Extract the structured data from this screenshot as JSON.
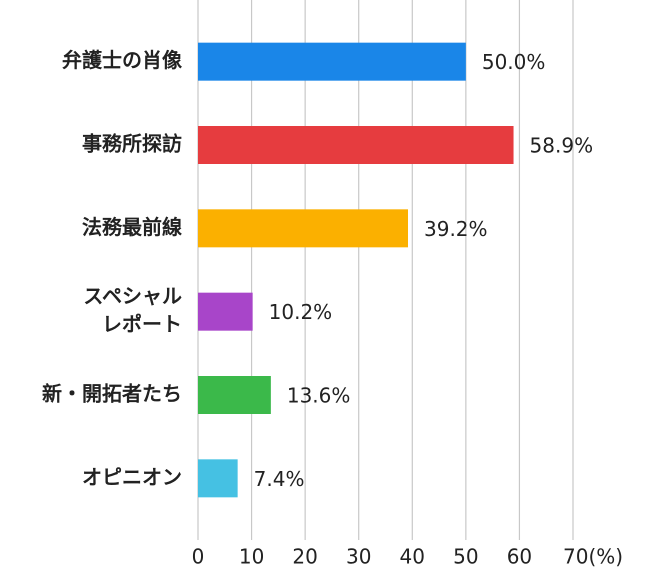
{
  "chart_data": {
    "type": "bar",
    "orientation": "horizontal",
    "categories": [
      "弁護士の肖像",
      "事務所探訪",
      "法務最前線",
      [
        "スペシャル",
        "レポート"
      ],
      "新・開拓者たち",
      "オピニオン"
    ],
    "values": [
      50.0,
      58.9,
      39.2,
      10.2,
      13.6,
      7.4
    ],
    "value_labels": [
      "50.0%",
      "58.9%",
      "39.2%",
      "10.2%",
      "13.6%",
      "7.4%"
    ],
    "colors": [
      "#1a86e8",
      "#e63c3f",
      "#fbb000",
      "#a845c9",
      "#3bb94a",
      "#45c1e3"
    ],
    "xlim": [
      0,
      70
    ],
    "xticks": [
      0,
      10,
      20,
      30,
      40,
      50,
      60,
      {
        "value": 70,
        "label": "70(%)"
      }
    ],
    "grid": true
  }
}
